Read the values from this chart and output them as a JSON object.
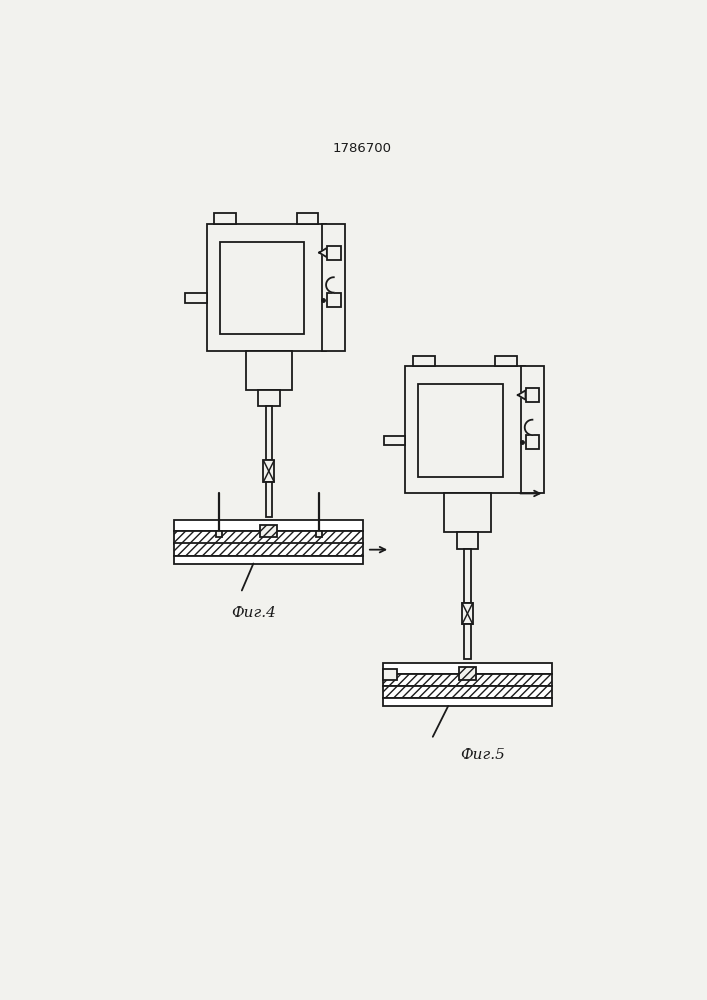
{
  "title": "1786700",
  "fig4_label": "Фиг.4",
  "fig5_label": "Фиг.5",
  "bg_color": "#f2f2ee",
  "line_color": "#1a1a1a"
}
